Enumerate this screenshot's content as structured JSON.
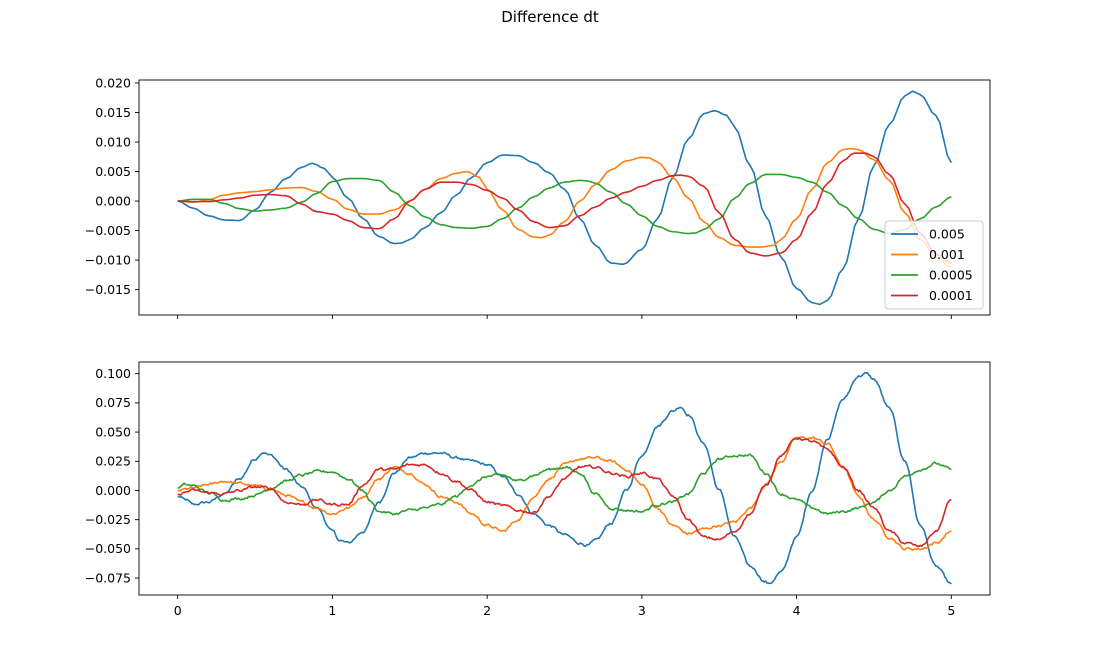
{
  "figure": {
    "suptitle": "Difference dt"
  },
  "colors": {
    "series": [
      "#1f77b4",
      "#ff7f0e",
      "#2ca02c",
      "#d62728"
    ],
    "axes": "#000000",
    "background": "#ffffff"
  },
  "chart_data": [
    {
      "type": "line",
      "title": "",
      "xlabel": "",
      "ylabel": "",
      "xlim": [
        -0.25,
        5.25
      ],
      "ylim": [
        -0.0193,
        0.0205
      ],
      "x_ticks": [
        "0",
        "1",
        "2",
        "3",
        "4",
        "5"
      ],
      "x_tick_values": [
        0,
        1,
        2,
        3,
        4,
        5
      ],
      "x_tick_labels_visible": false,
      "y_ticks": [
        "0.020",
        "0.015",
        "0.010",
        "0.005",
        "0.000",
        "−0.005",
        "−0.010",
        "−0.015"
      ],
      "y_tick_values": [
        0.02,
        0.015,
        0.01,
        0.005,
        0.0,
        -0.005,
        -0.01,
        -0.015
      ],
      "grid": false,
      "legend": "lower-right",
      "noise": false,
      "series": [
        {
          "name": "0.005",
          "color": "#1f77b4",
          "x": [
            0,
            0.1,
            0.2,
            0.3,
            0.4,
            0.5,
            0.6,
            0.7,
            0.8,
            0.87,
            0.95,
            1.0,
            1.1,
            1.2,
            1.3,
            1.4,
            1.45,
            1.5,
            1.6,
            1.7,
            1.8,
            1.9,
            2.0,
            2.1,
            2.2,
            2.3,
            2.4,
            2.5,
            2.6,
            2.7,
            2.8,
            2.88,
            3.0,
            3.1,
            3.2,
            3.3,
            3.4,
            3.47,
            3.55,
            3.6,
            3.7,
            3.8,
            3.9,
            4.0,
            4.1,
            4.15,
            4.2,
            4.3,
            4.4,
            4.5,
            4.6,
            4.7,
            4.75,
            4.8,
            4.9,
            5.0
          ],
          "y": [
            0.0,
            -0.0012,
            -0.0025,
            -0.0032,
            -0.0033,
            -0.0015,
            0.0015,
            0.0038,
            0.0057,
            0.0064,
            0.0055,
            0.004,
            0.0005,
            -0.003,
            -0.006,
            -0.0072,
            -0.0071,
            -0.0065,
            -0.0045,
            -0.002,
            0.001,
            0.004,
            0.0065,
            0.0078,
            0.0077,
            0.0065,
            0.0048,
            0.002,
            -0.003,
            -0.0075,
            -0.0105,
            -0.0107,
            -0.0082,
            -0.003,
            0.004,
            0.0105,
            0.0148,
            0.0153,
            0.0145,
            0.0125,
            0.006,
            -0.0025,
            -0.0095,
            -0.0148,
            -0.0172,
            -0.0175,
            -0.0168,
            -0.0115,
            -0.003,
            0.006,
            0.013,
            0.0178,
            0.0186,
            0.018,
            0.0145,
            0.0065
          ]
        },
        {
          "name": "0.001",
          "color": "#ff7f0e",
          "x": [
            0,
            0.1,
            0.2,
            0.3,
            0.4,
            0.5,
            0.6,
            0.7,
            0.8,
            0.9,
            1.0,
            1.1,
            1.2,
            1.3,
            1.4,
            1.5,
            1.6,
            1.7,
            1.8,
            1.87,
            1.95,
            2.0,
            2.1,
            2.2,
            2.3,
            2.35,
            2.4,
            2.5,
            2.6,
            2.7,
            2.8,
            2.9,
            3.0,
            3.05,
            3.1,
            3.2,
            3.3,
            3.4,
            3.5,
            3.6,
            3.7,
            3.77,
            3.85,
            3.9,
            4.0,
            4.1,
            4.2,
            4.3,
            4.35,
            4.4,
            4.5,
            4.6,
            4.7,
            4.8,
            4.9,
            5.0
          ],
          "y": [
            0.0,
            -0.0002,
            0.0002,
            0.001,
            0.0014,
            0.0016,
            0.0019,
            0.0022,
            0.0023,
            0.0016,
            0.0003,
            -0.0014,
            -0.0022,
            -0.0022,
            -0.0015,
            0.0,
            0.002,
            0.0038,
            0.0047,
            0.005,
            0.004,
            0.002,
            -0.0015,
            -0.0048,
            -0.0061,
            -0.0062,
            -0.0058,
            -0.0035,
            0.0,
            0.0028,
            0.0053,
            0.0068,
            0.0074,
            0.0073,
            0.0066,
            0.004,
            0.0005,
            -0.0035,
            -0.0062,
            -0.0075,
            -0.0078,
            -0.0078,
            -0.0075,
            -0.0065,
            -0.003,
            0.002,
            0.0065,
            0.0087,
            0.0089,
            0.0087,
            0.007,
            0.0035,
            -0.002,
            -0.0065,
            -0.0095,
            -0.0112
          ]
        },
        {
          "name": "0.0005",
          "color": "#2ca02c",
          "x": [
            0,
            0.1,
            0.2,
            0.3,
            0.4,
            0.5,
            0.6,
            0.7,
            0.8,
            0.9,
            1.0,
            1.1,
            1.2,
            1.3,
            1.4,
            1.5,
            1.6,
            1.7,
            1.8,
            1.9,
            2.0,
            2.1,
            2.2,
            2.3,
            2.4,
            2.5,
            2.6,
            2.65,
            2.7,
            2.8,
            2.9,
            3.0,
            3.1,
            3.2,
            3.3,
            3.35,
            3.4,
            3.5,
            3.6,
            3.7,
            3.8,
            3.9,
            4.0,
            4.1,
            4.2,
            4.3,
            4.4,
            4.5,
            4.6,
            4.7,
            4.8,
            4.9,
            5.0
          ],
          "y": [
            0.0,
            0.0003,
            0.0003,
            -0.0004,
            -0.0013,
            -0.0017,
            -0.0015,
            -0.0012,
            -0.0002,
            0.0013,
            0.0033,
            0.0038,
            0.0038,
            0.0035,
            0.0015,
            -0.0008,
            -0.0027,
            -0.004,
            -0.0045,
            -0.0046,
            -0.0043,
            -0.003,
            -0.0012,
            0.0007,
            0.0022,
            0.0032,
            0.0035,
            0.0034,
            0.003,
            0.0015,
            -0.0005,
            -0.0025,
            -0.0043,
            -0.0052,
            -0.0055,
            -0.0054,
            -0.0048,
            -0.003,
            0.0005,
            0.003,
            0.0045,
            0.0045,
            0.004,
            0.0032,
            0.0015,
            -0.0008,
            -0.003,
            -0.0048,
            -0.0055,
            -0.0048,
            -0.003,
            -0.001,
            0.0007
          ]
        },
        {
          "name": "0.0001",
          "color": "#d62728",
          "x": [
            0,
            0.1,
            0.2,
            0.3,
            0.4,
            0.5,
            0.6,
            0.7,
            0.8,
            0.9,
            1.0,
            1.1,
            1.2,
            1.3,
            1.4,
            1.5,
            1.6,
            1.7,
            1.8,
            1.9,
            2.0,
            2.1,
            2.2,
            2.3,
            2.4,
            2.5,
            2.6,
            2.7,
            2.8,
            2.9,
            3.0,
            3.1,
            3.2,
            3.25,
            3.3,
            3.4,
            3.5,
            3.6,
            3.7,
            3.8,
            3.9,
            4.0,
            4.1,
            4.2,
            4.3,
            4.37,
            4.45,
            4.5,
            4.6,
            4.7,
            4.8,
            4.9,
            5.0
          ],
          "y": [
            0.0,
            -0.0001,
            -0.0001,
            0.0002,
            0.0005,
            0.001,
            0.0011,
            0.0009,
            -0.0005,
            -0.0018,
            -0.0022,
            -0.0033,
            -0.0045,
            -0.0047,
            -0.003,
            0.0,
            0.002,
            0.0032,
            0.0032,
            0.0028,
            0.0018,
            0.0005,
            -0.0015,
            -0.0035,
            -0.0045,
            -0.0042,
            -0.0025,
            -0.001,
            0.0005,
            0.0015,
            0.0025,
            0.0035,
            0.0043,
            0.0044,
            0.0042,
            0.0025,
            -0.002,
            -0.0065,
            -0.0088,
            -0.0093,
            -0.0088,
            -0.0065,
            -0.002,
            0.003,
            0.0068,
            0.0081,
            0.0081,
            0.0075,
            0.0045,
            -0.0005,
            -0.0055,
            -0.009,
            -0.0105
          ]
        }
      ]
    },
    {
      "type": "line",
      "title": "",
      "xlabel": "",
      "ylabel": "",
      "xlim": [
        -0.25,
        5.25
      ],
      "ylim": [
        -0.0895,
        0.11
      ],
      "x_ticks": [
        "0",
        "1",
        "2",
        "3",
        "4",
        "5"
      ],
      "x_tick_values": [
        0,
        1,
        2,
        3,
        4,
        5
      ],
      "x_tick_labels_visible": true,
      "y_ticks": [
        "0.100",
        "0.075",
        "0.050",
        "0.025",
        "0.000",
        "−0.025",
        "−0.050",
        "−0.075"
      ],
      "y_tick_values": [
        0.1,
        0.075,
        0.05,
        0.025,
        0.0,
        -0.025,
        -0.05,
        -0.075
      ],
      "grid": false,
      "legend": "none",
      "noise": true,
      "series": [
        {
          "name": "",
          "color": "#1f77b4",
          "x": [
            0,
            0.05,
            0.1,
            0.2,
            0.3,
            0.4,
            0.5,
            0.55,
            0.6,
            0.7,
            0.8,
            0.9,
            1.0,
            1.05,
            1.1,
            1.2,
            1.3,
            1.4,
            1.5,
            1.6,
            1.7,
            1.8,
            1.9,
            2.0,
            2.1,
            2.2,
            2.3,
            2.4,
            2.5,
            2.6,
            2.65,
            2.7,
            2.8,
            2.9,
            3.0,
            3.1,
            3.2,
            3.25,
            3.3,
            3.4,
            3.5,
            3.6,
            3.7,
            3.8,
            3.82,
            3.9,
            4.0,
            4.1,
            4.2,
            4.3,
            4.4,
            4.45,
            4.5,
            4.6,
            4.7,
            4.8,
            4.9,
            5.0
          ],
          "y": [
            -0.005,
            -0.008,
            -0.012,
            -0.01,
            -0.003,
            0.01,
            0.027,
            0.033,
            0.03,
            0.018,
            0.003,
            -0.015,
            -0.035,
            -0.043,
            -0.045,
            -0.035,
            -0.01,
            0.015,
            0.028,
            0.032,
            0.032,
            0.028,
            0.025,
            0.022,
            0.012,
            -0.003,
            -0.02,
            -0.03,
            -0.038,
            -0.045,
            -0.047,
            -0.043,
            -0.028,
            0.0,
            0.03,
            0.055,
            0.068,
            0.072,
            0.065,
            0.04,
            0.0,
            -0.04,
            -0.065,
            -0.078,
            -0.08,
            -0.07,
            -0.04,
            0.0,
            0.045,
            0.078,
            0.098,
            0.1,
            0.095,
            0.07,
            0.025,
            -0.03,
            -0.065,
            -0.08
          ]
        },
        {
          "name": "",
          "color": "#ff7f0e",
          "x": [
            0,
            0.1,
            0.2,
            0.3,
            0.4,
            0.5,
            0.6,
            0.7,
            0.8,
            0.9,
            1.0,
            1.1,
            1.2,
            1.3,
            1.4,
            1.5,
            1.6,
            1.7,
            1.8,
            1.9,
            2.0,
            2.1,
            2.2,
            2.3,
            2.4,
            2.5,
            2.6,
            2.7,
            2.8,
            2.9,
            3.0,
            3.1,
            3.2,
            3.3,
            3.4,
            3.5,
            3.6,
            3.7,
            3.8,
            3.9,
            4.0,
            4.1,
            4.2,
            4.3,
            4.4,
            4.5,
            4.6,
            4.7,
            4.8,
            4.9,
            5.0
          ],
          "y": [
            0.0,
            0.002,
            0.005,
            0.008,
            0.006,
            0.004,
            0.001,
            -0.004,
            -0.01,
            -0.015,
            -0.02,
            -0.015,
            -0.005,
            0.01,
            0.02,
            0.015,
            0.005,
            -0.005,
            -0.01,
            -0.02,
            -0.03,
            -0.035,
            -0.025,
            -0.005,
            0.01,
            0.022,
            0.027,
            0.028,
            0.025,
            0.018,
            0.005,
            -0.015,
            -0.03,
            -0.037,
            -0.033,
            -0.03,
            -0.027,
            -0.015,
            0.005,
            0.025,
            0.045,
            0.045,
            0.04,
            0.02,
            -0.005,
            -0.025,
            -0.04,
            -0.05,
            -0.05,
            -0.045,
            -0.035
          ]
        },
        {
          "name": "",
          "color": "#2ca02c",
          "x": [
            0,
            0.05,
            0.1,
            0.2,
            0.3,
            0.4,
            0.5,
            0.6,
            0.7,
            0.8,
            0.9,
            1.0,
            1.1,
            1.2,
            1.25,
            1.3,
            1.4,
            1.5,
            1.6,
            1.7,
            1.8,
            1.9,
            2.0,
            2.1,
            2.2,
            2.3,
            2.4,
            2.5,
            2.6,
            2.7,
            2.8,
            2.9,
            3.0,
            3.1,
            3.2,
            3.3,
            3.4,
            3.5,
            3.6,
            3.7,
            3.8,
            3.9,
            4.0,
            4.1,
            4.2,
            4.3,
            4.4,
            4.5,
            4.6,
            4.7,
            4.8,
            4.9,
            5.0
          ],
          "y": [
            0.002,
            0.005,
            0.004,
            -0.002,
            -0.008,
            -0.007,
            -0.004,
            0.002,
            0.008,
            0.013,
            0.016,
            0.016,
            0.01,
            0.0,
            -0.01,
            -0.018,
            -0.02,
            -0.017,
            -0.015,
            -0.012,
            -0.005,
            0.005,
            0.012,
            0.013,
            0.008,
            0.013,
            0.018,
            0.02,
            0.015,
            -0.003,
            -0.015,
            -0.017,
            -0.018,
            -0.012,
            -0.01,
            -0.003,
            0.015,
            0.027,
            0.03,
            0.03,
            0.015,
            -0.003,
            -0.008,
            -0.015,
            -0.02,
            -0.018,
            -0.015,
            -0.01,
            0.0,
            0.012,
            0.018,
            0.023,
            0.018
          ]
        },
        {
          "name": "",
          "color": "#d62728",
          "x": [
            0,
            0.1,
            0.2,
            0.3,
            0.4,
            0.5,
            0.6,
            0.7,
            0.8,
            0.9,
            1.0,
            1.1,
            1.2,
            1.3,
            1.4,
            1.5,
            1.6,
            1.7,
            1.8,
            1.9,
            2.0,
            2.1,
            2.2,
            2.3,
            2.4,
            2.5,
            2.6,
            2.7,
            2.8,
            2.9,
            3.0,
            3.1,
            3.2,
            3.3,
            3.4,
            3.5,
            3.6,
            3.7,
            3.8,
            3.9,
            4.0,
            4.1,
            4.2,
            4.3,
            4.4,
            4.5,
            4.6,
            4.7,
            4.8,
            4.9,
            5.0
          ],
          "y": [
            -0.003,
            0.0,
            -0.002,
            -0.003,
            0.0,
            0.003,
            0.002,
            -0.01,
            -0.012,
            -0.008,
            -0.012,
            -0.012,
            0.005,
            0.018,
            0.018,
            0.022,
            0.022,
            0.015,
            0.008,
            0.0,
            -0.01,
            -0.013,
            -0.017,
            -0.019,
            -0.005,
            0.01,
            0.02,
            0.02,
            0.015,
            0.012,
            0.015,
            0.01,
            -0.005,
            -0.025,
            -0.04,
            -0.042,
            -0.035,
            -0.02,
            0.005,
            0.03,
            0.045,
            0.042,
            0.035,
            0.02,
            0.0,
            -0.015,
            -0.035,
            -0.045,
            -0.048,
            -0.035,
            -0.008
          ]
        }
      ]
    }
  ]
}
